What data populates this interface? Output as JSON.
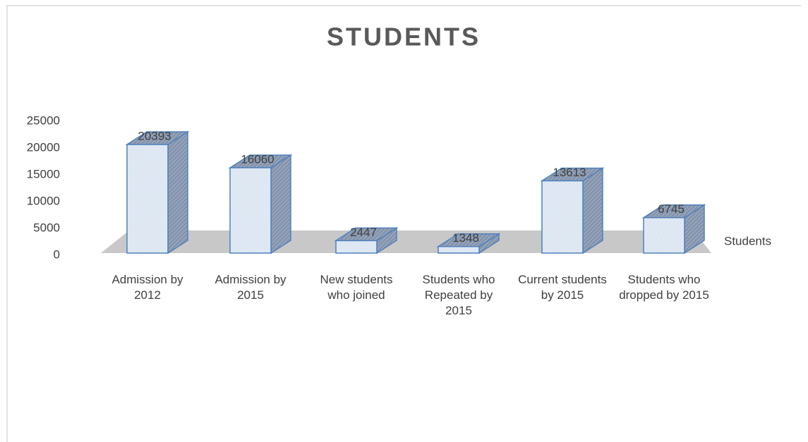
{
  "chart_data": {
    "type": "bar3d",
    "title": "STUDENTS",
    "categories": [
      "Admission by 2012",
      "Admission by 2015",
      "New students who joined",
      "Students who Repeated by 2015",
      "Current students by 2015",
      "Students who dropped by 2015"
    ],
    "series": [
      {
        "name": "Students",
        "color": "#dce6f2",
        "edge": "#4f81bd",
        "shade": "#8494ad",
        "values": [
          20393,
          16060,
          2447,
          1348,
          13613,
          6745
        ]
      }
    ],
    "ylim": [
      0,
      25000
    ],
    "yticks": [
      0,
      5000,
      10000,
      15000,
      20000,
      25000
    ],
    "grid": false
  }
}
